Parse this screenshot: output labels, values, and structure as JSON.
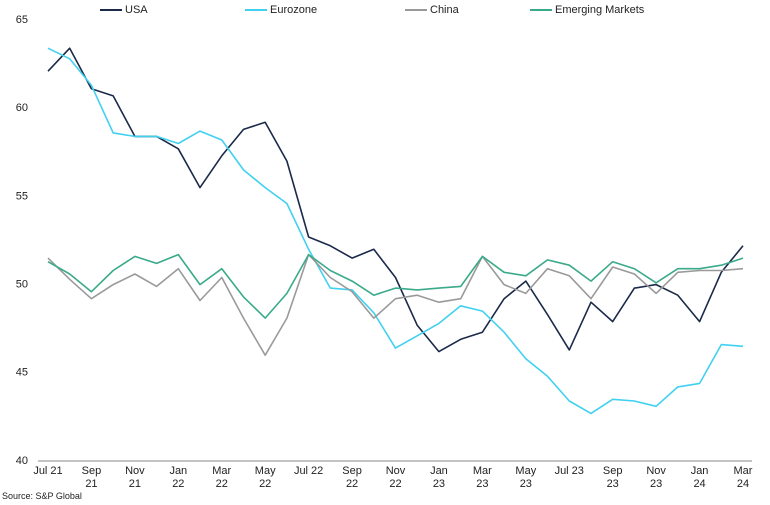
{
  "chart_data": {
    "type": "line",
    "source": "Source: S&P Global",
    "categories": [
      "Jul 21",
      null,
      "Sep 21",
      null,
      "Nov 21",
      null,
      "Jan 22",
      null,
      "Mar 22",
      null,
      "May 22",
      null,
      "Jul 22",
      null,
      "Sep 22",
      null,
      "Nov 22",
      null,
      "Jan 23",
      null,
      "Mar 23",
      null,
      "May 23",
      null,
      "Jul 23",
      null,
      "Sep 23",
      null,
      "Nov 23",
      null,
      "Jan 24",
      null,
      "Mar 24"
    ],
    "series": [
      {
        "name": "USA",
        "color": "#1b2a4a",
        "values": [
          62.1,
          63.4,
          61.1,
          60.7,
          58.4,
          58.4,
          57.7,
          55.5,
          57.3,
          58.8,
          59.2,
          57.0,
          52.7,
          52.2,
          51.5,
          52.0,
          50.4,
          47.7,
          46.2,
          46.9,
          47.3,
          49.2,
          50.2,
          48.3,
          46.3,
          49.0,
          47.9,
          49.8,
          50.0,
          49.4,
          47.9,
          50.7,
          52.2
        ]
      },
      {
        "name": "Eurozone",
        "color": "#41d1f0",
        "values": [
          63.4,
          62.8,
          61.3,
          58.6,
          58.4,
          58.4,
          58.0,
          58.7,
          58.2,
          56.5,
          55.5,
          54.6,
          52.0,
          49.8,
          49.7,
          48.4,
          46.4,
          47.1,
          47.8,
          48.8,
          48.5,
          47.3,
          45.8,
          44.8,
          43.4,
          42.7,
          43.5,
          43.4,
          43.1,
          44.2,
          44.4,
          46.6,
          46.5
        ]
      },
      {
        "name": "China",
        "color": "#9a9a9a",
        "values": [
          51.5,
          50.3,
          49.2,
          50.0,
          50.6,
          49.9,
          50.9,
          49.1,
          50.4,
          48.1,
          46.0,
          48.1,
          51.7,
          50.4,
          49.6,
          48.1,
          49.2,
          49.4,
          49.0,
          49.2,
          51.6,
          50.0,
          49.5,
          50.9,
          50.5,
          49.2,
          51.0,
          50.6,
          49.5,
          50.7,
          50.8,
          50.8,
          50.9
        ]
      },
      {
        "name": "Emerging Markets",
        "color": "#3aaa8a",
        "values": [
          51.3,
          50.6,
          49.6,
          50.8,
          51.6,
          51.2,
          51.7,
          50.0,
          50.9,
          49.3,
          48.1,
          49.5,
          51.7,
          50.8,
          50.2,
          49.4,
          49.8,
          49.7,
          49.8,
          49.9,
          51.6,
          50.7,
          50.5,
          51.4,
          51.1,
          50.2,
          51.3,
          50.9,
          50.1,
          50.9,
          50.9,
          51.1,
          51.5
        ]
      }
    ],
    "ylim": [
      40,
      65
    ],
    "yticks": [
      40,
      45,
      50,
      55,
      60,
      65
    ],
    "grid": false,
    "legend": "top"
  }
}
